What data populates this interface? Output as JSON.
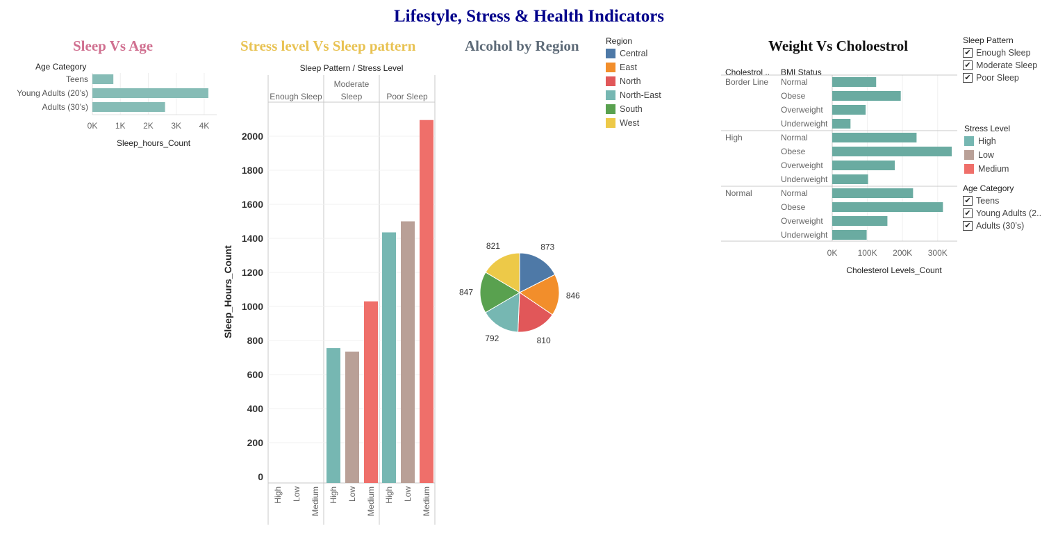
{
  "dashboard": {
    "title": "Lifestyle, Stress & Health Indicators"
  },
  "colors": {
    "teal": "#86bcb6",
    "teal_dark": "#6aaba1",
    "stress_high": "#76b7b2",
    "stress_low": "#b9a097",
    "stress_medium": "#ef6f6a"
  },
  "chart_data": [
    {
      "id": "sleep-vs-age",
      "type": "bar",
      "orientation": "horizontal",
      "title": "Sleep Vs Age",
      "row_header": "Age Category",
      "categories": [
        "Teens",
        "Young Adults (20’s)",
        "Adults (30’s)"
      ],
      "values": [
        750,
        4150,
        2600
      ],
      "xlabel": "Sleep_hours_Count",
      "xticks": [
        "0K",
        "1K",
        "2K",
        "3K",
        "4K"
      ],
      "xlim": [
        0,
        4400
      ],
      "color": "#86bcb6"
    },
    {
      "id": "stress-vs-sleep",
      "type": "bar",
      "title": "Stress level Vs Sleep pattern",
      "header": "Sleep Pattern  /  Stress Level",
      "ylabel": "Sleep_Hours_Count",
      "ylim": [
        0,
        2100
      ],
      "yticks": [
        0,
        200,
        400,
        600,
        800,
        1000,
        1200,
        1400,
        1600,
        1800,
        2000
      ],
      "groups": [
        {
          "label_lines": [
            "Enough Sleep"
          ],
          "values": [
            0,
            0,
            0
          ]
        },
        {
          "label_lines": [
            "Moderate",
            "Sleep"
          ],
          "values": [
            755,
            735,
            1030
          ]
        },
        {
          "label_lines": [
            "Poor Sleep"
          ],
          "values": [
            1435,
            1500,
            2095
          ]
        }
      ],
      "stress_levels": [
        "High",
        "Low",
        "Medium"
      ],
      "colors": [
        "#76b7b2",
        "#b9a097",
        "#ef6f6a"
      ]
    },
    {
      "id": "alcohol-by-region",
      "type": "pie",
      "title": "Alcohol by Region",
      "legend_title": "Region",
      "slices": [
        {
          "label": "Central",
          "value": 873,
          "color": "#4e79a7"
        },
        {
          "label": "East",
          "value": 846,
          "color": "#f28e2b"
        },
        {
          "label": "North",
          "value": 810,
          "color": "#e15759"
        },
        {
          "label": "North-East",
          "value": 792,
          "color": "#76b7b2"
        },
        {
          "label": "South",
          "value": 847,
          "color": "#59a14f"
        },
        {
          "label": "West",
          "value": 821,
          "color": "#edc948"
        }
      ]
    },
    {
      "id": "weight-vs-cholesterol",
      "type": "bar",
      "orientation": "horizontal",
      "title": "Weight Vs Choloestrol",
      "col_header_1": "Cholestrol ..",
      "col_header_2": "BMI Status",
      "xlabel": "Cholesterol Levels_Count",
      "xticks": [
        "0K",
        "100K",
        "200K",
        "300K"
      ],
      "xlim": [
        0,
        340000
      ],
      "color": "#6aaba1",
      "groups": [
        {
          "name": "Border Line",
          "rows": [
            {
              "label": "Normal",
              "value": 125000
            },
            {
              "label": "Obese",
              "value": 195000
            },
            {
              "label": "Overweight",
              "value": 95000
            },
            {
              "label": "Underweight",
              "value": 52000
            }
          ]
        },
        {
          "name": "High",
          "rows": [
            {
              "label": "Normal",
              "value": 240000
            },
            {
              "label": "Obese",
              "value": 340000
            },
            {
              "label": "Overweight",
              "value": 178000
            },
            {
              "label": "Underweight",
              "value": 102000
            }
          ]
        },
        {
          "name": "Normal",
          "rows": [
            {
              "label": "Normal",
              "value": 230000
            },
            {
              "label": "Obese",
              "value": 315000
            },
            {
              "label": "Overweight",
              "value": 157000
            },
            {
              "label": "Underweight",
              "value": 98000
            }
          ]
        }
      ]
    }
  ],
  "legends": {
    "region_title": "Region",
    "regions": [
      {
        "label": "Central",
        "color": "#4e79a7"
      },
      {
        "label": "East",
        "color": "#f28e2b"
      },
      {
        "label": "North",
        "color": "#e15759"
      },
      {
        "label": "North-East",
        "color": "#76b7b2"
      },
      {
        "label": "South",
        "color": "#59a14f"
      },
      {
        "label": "West",
        "color": "#edc948"
      }
    ],
    "stress_title": "Stress Level",
    "stress": [
      {
        "label": "High",
        "color": "#76b7b2"
      },
      {
        "label": "Low",
        "color": "#b9a097"
      },
      {
        "label": "Medium",
        "color": "#ef6f6a"
      }
    ]
  },
  "filters": {
    "sleep_title": "Sleep Pattern",
    "sleep_items": [
      {
        "label": "Enough Sleep",
        "checked": true
      },
      {
        "label": "Moderate Sleep",
        "checked": true
      },
      {
        "label": "Poor Sleep",
        "checked": true
      }
    ],
    "age_title": "Age Category",
    "age_items": [
      {
        "label": "Teens",
        "checked": true
      },
      {
        "label": "Young Adults (2..",
        "checked": true
      },
      {
        "label": "Adults (30’s)",
        "checked": true
      }
    ]
  }
}
